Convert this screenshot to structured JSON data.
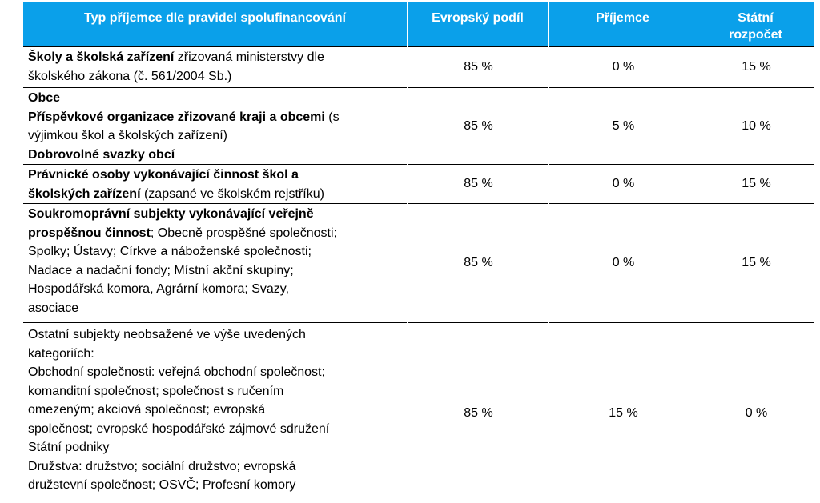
{
  "headers": {
    "type": "Typ příjemce dle pravidel spolufinancování",
    "eu": "Evropský podíl",
    "recipient": "Příjemce",
    "state_line1": "Státní",
    "state_line2": "rozpočet"
  },
  "rows": [
    {
      "desc": [
        {
          "bold": "Školy a školská zařízení",
          "rest": " zřizovaná ministerstvy dle"
        },
        {
          "bold": "",
          "rest": "školského zákona (č. 561/2004 Sb.)"
        }
      ],
      "eu": "85 %",
      "recipient": "0 %",
      "state": "15 %"
    },
    {
      "desc": [
        {
          "bold": "Obce",
          "rest": ""
        },
        {
          "bold": "Příspěvkové organizace zřizované kraji a obcemi",
          "rest": " (s"
        },
        {
          "bold": "",
          "rest": "výjimkou škol a školských zařízení)"
        },
        {
          "bold": "Dobrovolné svazky obcí",
          "rest": ""
        }
      ],
      "eu": "85 %",
      "recipient": "5 %",
      "state": "10 %"
    },
    {
      "desc": [
        {
          "bold": "Právnické osoby vykonávající činnost škol a",
          "rest": ""
        },
        {
          "bold": "školských zařízení",
          "rest": " (zapsané ve školském rejstříku)"
        }
      ],
      "eu": "85 %",
      "recipient": "0 %",
      "state": "15 %"
    },
    {
      "desc": [
        {
          "bold": "Soukromoprávní subjekty vykonávající veřejně",
          "rest": ""
        },
        {
          "bold": "prospěšnou činnost",
          "rest": "; Obecně prospěšné společnosti;"
        },
        {
          "bold": "",
          "rest": "Spolky; Ústavy; Církve a náboženské společnosti;"
        },
        {
          "bold": "",
          "rest": "Nadace a nadační fondy; Místní akční skupiny;"
        },
        {
          "bold": "",
          "rest": "Hospodářská komora, Agrární komora; Svazy,"
        },
        {
          "bold": "",
          "rest": "asociace"
        }
      ],
      "eu": "85 %",
      "recipient": "0 %",
      "state": "15 %"
    },
    {
      "desc": [
        {
          "bold": "",
          "rest": "Ostatní subjekty neobsažené ve výše uvedených"
        },
        {
          "bold": "",
          "rest": "kategoriích:"
        },
        {
          "bold": "",
          "rest": "Obchodní společnosti: veřejná obchodní společnost;"
        },
        {
          "bold": "",
          "rest": "komanditní společnost; společnost s ručením"
        },
        {
          "bold": "",
          "rest": "omezeným; akciová společnost; evropská"
        },
        {
          "bold": "",
          "rest": "společnost; evropské hospodářské zájmové sdružení"
        },
        {
          "bold": "",
          "rest": "Státní podniky"
        },
        {
          "bold": "",
          "rest": "Družstva: družstvo; sociální družstvo; evropská"
        },
        {
          "bold": "",
          "rest": "družstevní společnost; OSVČ; Profesní komory"
        }
      ],
      "eu": "85 %",
      "recipient": "15 %",
      "state": "0 %"
    }
  ]
}
